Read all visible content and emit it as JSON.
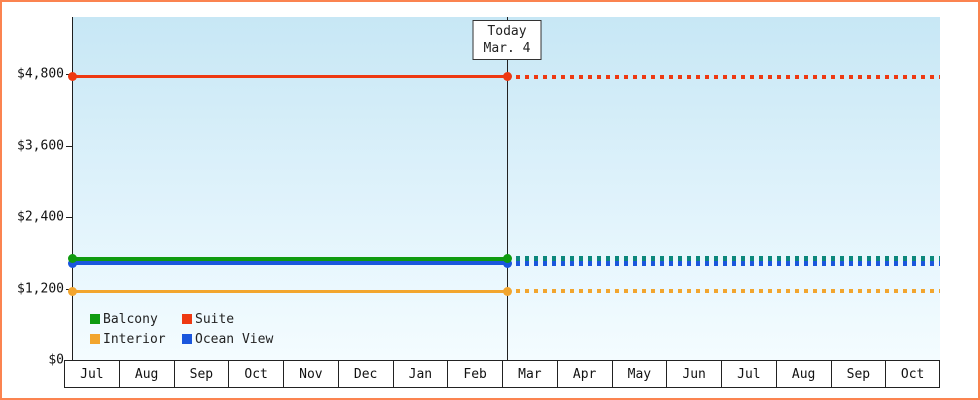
{
  "chart_data": {
    "type": "line",
    "y_axis": {
      "ticks": [
        {
          "label": "$0",
          "value": 0
        },
        {
          "label": "$1,200",
          "value": 1200
        },
        {
          "label": "$2,400",
          "value": 2400
        },
        {
          "label": "$3,600",
          "value": 3600
        },
        {
          "label": "$4,800",
          "value": 4800
        }
      ],
      "range": [
        0,
        5760
      ]
    },
    "x_axis": {
      "months": [
        "Jul",
        "Aug",
        "Sep",
        "Oct",
        "Nov",
        "Dec",
        "Jan",
        "Feb",
        "Mar",
        "Apr",
        "May",
        "Jun",
        "Jul",
        "Aug",
        "Sep",
        "Oct"
      ]
    },
    "today_marker": {
      "title": "Today",
      "date": "Mar. 4",
      "month_index": 8,
      "month_fraction": 0.1
    },
    "series": [
      {
        "id": "suite",
        "name": "Suite",
        "value": 4750,
        "color": "#ee3912",
        "projected_color": "#ee3912",
        "thickness": 3
      },
      {
        "id": "ocean-view",
        "name": "Ocean View",
        "value": 1620,
        "color": "#1a56dd",
        "projected_color": "#1a56dd",
        "thickness": 4
      },
      {
        "id": "balcony",
        "name": "Balcony",
        "value": 1700,
        "color": "#0f9b10",
        "projected_color": "#0b877c",
        "thickness": 4
      },
      {
        "id": "interior",
        "name": "Interior",
        "value": 1150,
        "color": "#f2a52e",
        "projected_color": "#f2a52e",
        "thickness": 3
      }
    ],
    "legend": [
      {
        "label": "Balcony",
        "color": "#0f9b10"
      },
      {
        "label": "Suite",
        "color": "#ee3912"
      },
      {
        "label": "Interior",
        "color": "#f2a52e"
      },
      {
        "label": "Ocean View",
        "color": "#1a56dd"
      }
    ],
    "colors": {
      "frame_border": "#fb8350",
      "plot_top": "#c7e7f5",
      "plot_bottom": "#f4fcff",
      "axis": "#1f1f1f"
    }
  }
}
